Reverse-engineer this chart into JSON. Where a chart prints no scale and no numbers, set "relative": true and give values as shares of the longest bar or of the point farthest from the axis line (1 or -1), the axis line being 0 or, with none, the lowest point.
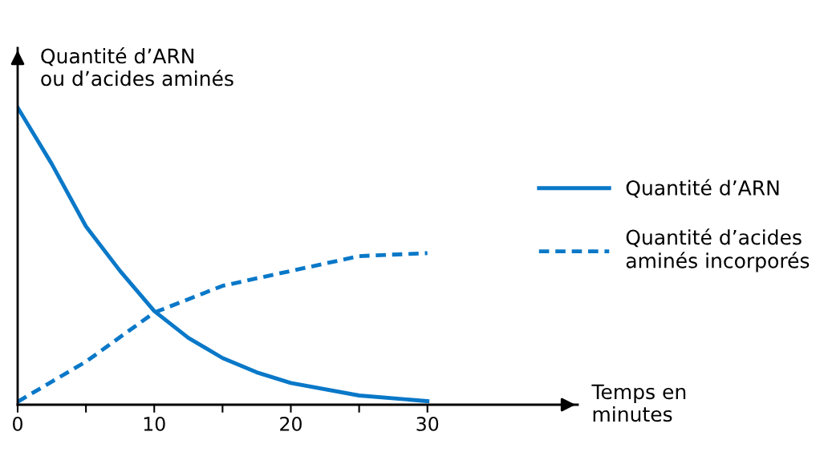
{
  "chart_data": {
    "type": "line",
    "relative": true,
    "xlabel": "Temps en\nminutes",
    "ylabel": "Quantité d’ARN\nou d’acides aminés",
    "xlim": [
      0,
      41
    ],
    "xticks": [
      0,
      {
        "value": 5,
        "label": null
      },
      10,
      {
        "value": 15,
        "label": null
      },
      20,
      {
        "value": 25,
        "label": null
      },
      30
    ],
    "tick_labels": "x",
    "grid": false,
    "legend": "right",
    "series": [
      {
        "name": "Quantité d’ARN",
        "color": "#0a78c8",
        "line_style": "solid",
        "x": [
          0,
          2.5,
          5,
          7.5,
          10,
          12.5,
          15,
          17.5,
          20,
          25,
          30
        ],
        "values": [
          1,
          0.81,
          0.6,
          0.45,
          0.315,
          0.225,
          0.157,
          0.109,
          0.073,
          0.031,
          0.012
        ]
      },
      {
        "name": "Quantité d’acides\naminés incorporés",
        "color": "#0a78c8",
        "line_style": "dashed",
        "x": [
          0,
          5,
          10,
          15,
          20,
          25,
          30
        ],
        "values": [
          0.01,
          0.145,
          0.31,
          0.4,
          0.45,
          0.5,
          0.51
        ]
      }
    ]
  }
}
